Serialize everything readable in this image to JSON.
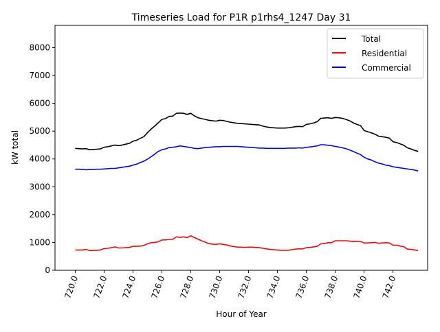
{
  "chart_data": {
    "type": "line",
    "title": "Timeseries Load for P1R p1rhs4_1247  Day 31",
    "xlabel": "Hour of Year",
    "ylabel": "kW total",
    "xlim": [
      718.6,
      744.4
    ],
    "ylim": [
      0,
      8800
    ],
    "x_ticks": [
      "720.0",
      "722.0",
      "724.0",
      "726.0",
      "728.0",
      "730.0",
      "732.0",
      "734.0",
      "736.0",
      "738.0",
      "740.0",
      "742.0"
    ],
    "y_ticks": [
      "0",
      "1000",
      "2000",
      "3000",
      "4000",
      "5000",
      "6000",
      "7000",
      "8000"
    ],
    "legend_position": "top-right",
    "x": [
      720,
      720.25,
      720.5,
      720.75,
      721,
      721.25,
      721.5,
      721.75,
      722,
      722.25,
      722.5,
      722.75,
      723,
      723.25,
      723.5,
      723.75,
      724,
      724.25,
      724.5,
      724.75,
      725,
      725.25,
      725.5,
      725.75,
      726,
      726.25,
      726.5,
      726.75,
      727,
      727.25,
      727.5,
      727.75,
      728,
      728.25,
      728.5,
      728.75,
      729,
      729.25,
      729.5,
      729.75,
      730,
      730.25,
      730.5,
      730.75,
      731,
      731.25,
      731.5,
      731.75,
      732,
      732.25,
      732.5,
      732.75,
      733,
      733.25,
      733.5,
      733.75,
      734,
      734.25,
      734.5,
      734.75,
      735,
      735.25,
      735.5,
      735.75,
      736,
      736.25,
      736.5,
      736.75,
      737,
      737.25,
      737.5,
      737.75,
      738,
      738.25,
      738.5,
      738.75,
      739,
      739.25,
      739.5,
      739.75,
      740,
      740.25,
      740.5,
      740.75,
      741,
      741.25,
      741.5,
      741.75,
      742,
      742.25,
      742.5,
      742.75,
      743,
      743.25,
      743.5,
      743.75
    ],
    "series": [
      {
        "name": "Total",
        "color": "#000000",
        "values": [
          4380,
          4370,
          4360,
          4370,
          4330,
          4340,
          4350,
          4360,
          4420,
          4440,
          4470,
          4500,
          4480,
          4500,
          4530,
          4560,
          4640,
          4670,
          4740,
          4800,
          4940,
          5070,
          5180,
          5300,
          5420,
          5450,
          5530,
          5540,
          5640,
          5650,
          5640,
          5600,
          5640,
          5550,
          5480,
          5450,
          5420,
          5390,
          5370,
          5360,
          5390,
          5380,
          5350,
          5320,
          5300,
          5280,
          5270,
          5260,
          5250,
          5240,
          5230,
          5220,
          5180,
          5150,
          5130,
          5120,
          5110,
          5110,
          5110,
          5120,
          5140,
          5160,
          5170,
          5160,
          5240,
          5260,
          5290,
          5340,
          5460,
          5470,
          5480,
          5460,
          5490,
          5480,
          5460,
          5420,
          5370,
          5300,
          5240,
          5200,
          5020,
          4980,
          4940,
          4890,
          4820,
          4800,
          4780,
          4750,
          4620,
          4590,
          4540,
          4490,
          4400,
          4360,
          4310,
          4270
        ]
      },
      {
        "name": "Residential",
        "color": "#ff0000",
        "values": [
          730,
          730,
          730,
          750,
          710,
          710,
          720,
          730,
          780,
          790,
          810,
          840,
          800,
          800,
          810,
          820,
          860,
          860,
          870,
          890,
          950,
          990,
          1000,
          1020,
          1090,
          1090,
          1110,
          1110,
          1200,
          1180,
          1200,
          1170,
          1240,
          1180,
          1120,
          1060,
          1010,
          960,
          940,
          930,
          950,
          930,
          910,
          870,
          850,
          830,
          830,
          820,
          830,
          830,
          820,
          810,
          790,
          770,
          750,
          740,
          730,
          720,
          720,
          720,
          740,
          760,
          770,
          770,
          810,
          820,
          840,
          860,
          950,
          960,
          990,
          990,
          1060,
          1060,
          1060,
          1060,
          1050,
          1030,
          1040,
          1040,
          980,
          980,
          990,
          1000,
          970,
          980,
          990,
          980,
          900,
          900,
          870,
          850,
          760,
          750,
          730,
          710
        ]
      },
      {
        "name": "Commercial",
        "color": "#0000ff",
        "values": [
          3630,
          3630,
          3620,
          3610,
          3620,
          3620,
          3630,
          3630,
          3640,
          3650,
          3660,
          3660,
          3680,
          3700,
          3720,
          3740,
          3780,
          3810,
          3870,
          3920,
          3990,
          4080,
          4170,
          4270,
          4330,
          4360,
          4410,
          4420,
          4440,
          4470,
          4450,
          4430,
          4410,
          4380,
          4370,
          4390,
          4410,
          4420,
          4430,
          4440,
          4440,
          4450,
          4450,
          4450,
          4450,
          4450,
          4440,
          4430,
          4420,
          4410,
          4400,
          4390,
          4390,
          4380,
          4380,
          4380,
          4380,
          4380,
          4380,
          4390,
          4390,
          4390,
          4400,
          4390,
          4420,
          4430,
          4450,
          4470,
          4510,
          4510,
          4490,
          4480,
          4450,
          4430,
          4400,
          4370,
          4320,
          4270,
          4210,
          4160,
          4060,
          4000,
          3960,
          3900,
          3850,
          3820,
          3780,
          3760,
          3720,
          3700,
          3680,
          3660,
          3640,
          3620,
          3600,
          3570
        ]
      }
    ]
  }
}
